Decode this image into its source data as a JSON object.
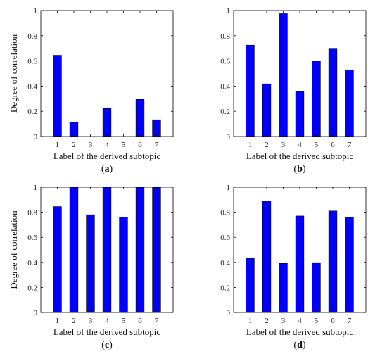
{
  "chart_data": [
    {
      "type": "bar",
      "panel": "a",
      "categories": [
        "1",
        "2",
        "3",
        "4",
        "5",
        "6",
        "7"
      ],
      "values": [
        0.645,
        0.112,
        0.0,
        0.222,
        0.0,
        0.295,
        0.133
      ],
      "xlabel": "Label of the derived subtopic",
      "ylabel": "Degree of correlation",
      "ylim": [
        0,
        1
      ],
      "yticks": [
        "0",
        "0.2",
        "0.4",
        "0.6",
        "0.8",
        "1"
      ],
      "color": "#0000ff"
    },
    {
      "type": "bar",
      "panel": "b",
      "categories": [
        "1",
        "2",
        "3",
        "4",
        "5",
        "6",
        "7"
      ],
      "values": [
        0.725,
        0.418,
        0.975,
        0.357,
        0.598,
        0.7,
        0.528
      ],
      "xlabel": "Label of the derived subtopic",
      "ylabel": "",
      "ylim": [
        0,
        1
      ],
      "yticks": [
        "0",
        "0.2",
        "0.4",
        "0.6",
        "0.8",
        "1"
      ],
      "color": "#0000ff"
    },
    {
      "type": "bar",
      "panel": "c",
      "categories": [
        "1",
        "2",
        "3",
        "4",
        "5",
        "6",
        "7"
      ],
      "values": [
        0.845,
        1.0,
        0.78,
        1.0,
        0.762,
        1.0,
        1.0
      ],
      "xlabel": "Label of the derived subtopic",
      "ylabel": "Degree of correlation",
      "ylim": [
        0,
        1
      ],
      "yticks": [
        "0",
        "0.2",
        "0.4",
        "0.6",
        "0.8",
        "1"
      ],
      "color": "#0000ff"
    },
    {
      "type": "bar",
      "panel": "d",
      "categories": [
        "1",
        "2",
        "3",
        "4",
        "5",
        "6",
        "7"
      ],
      "values": [
        0.432,
        0.888,
        0.392,
        0.77,
        0.398,
        0.81,
        0.758
      ],
      "xlabel": "Label of the derived subtopic",
      "ylabel": "",
      "ylim": [
        0,
        1
      ],
      "yticks": [
        "0",
        "0.2",
        "0.4",
        "0.6",
        "0.8",
        "1"
      ],
      "color": "#0000ff"
    }
  ]
}
